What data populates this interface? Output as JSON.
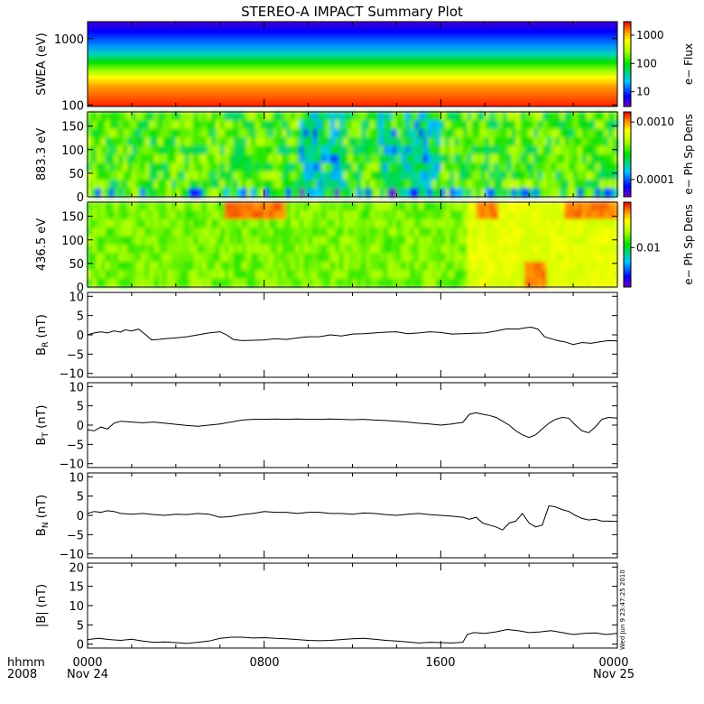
{
  "title": "STEREO-A IMPACT Summary Plot",
  "timestamp_note": "Wed Jun 9 23:47:25 2010",
  "colors": {
    "frame": "#000000",
    "trace": "#000000",
    "background": "#ffffff"
  },
  "time_axis": {
    "row1_labels": [
      "hhmm",
      "0000",
      "0800",
      "1600",
      "0000"
    ],
    "row2_labels": [
      "2008",
      "Nov 24",
      "Nov 25"
    ],
    "range_hours": [
      0,
      24
    ],
    "major_ticks_hours": [
      0,
      8,
      16,
      24
    ]
  },
  "chart_data": [
    {
      "type": "heatmap",
      "ylabel": "SWEA (eV)",
      "y_scale": "log",
      "ylim": [
        95,
        1800
      ],
      "yticks": [
        100,
        1000
      ],
      "ytick_labels": [
        "100",
        "1000"
      ],
      "colorbar": {
        "label": "e− Flux",
        "scale": "log",
        "range": [
          3,
          3000
        ],
        "ticks": [
          10,
          100,
          1000
        ],
        "tick_labels": [
          "10",
          "100",
          "1000"
        ]
      },
      "description": "Electron flux vs energy: red/orange at low energy (~100 eV), green mid, blue at top (>1000 eV); roughly constant through day."
    },
    {
      "type": "heatmap",
      "ylabel": "883.3 eV",
      "ylim": [
        0,
        180
      ],
      "yticks": [
        0,
        50,
        100,
        150
      ],
      "ytick_labels": [
        "0",
        "50",
        "100",
        "150"
      ],
      "colorbar": {
        "label": "e− Ph Sp Dens",
        "scale": "log",
        "range": [
          5e-05,
          0.0015
        ],
        "ticks": [
          0.0001,
          0.001
        ],
        "tick_labels": [
          "0.0001",
          "0.0010"
        ]
      },
      "description": "Pitch angle distribution at 883.3 eV, mostly green/yellow with blue patches near 09:30-11:30 and 13:00-16:00."
    },
    {
      "type": "heatmap",
      "ylabel": "436.5 eV",
      "ylim": [
        0,
        180
      ],
      "yticks": [
        0,
        50,
        100,
        150
      ],
      "ytick_labels": [
        "0",
        "50",
        "100",
        "150"
      ],
      "colorbar": {
        "label": "e− Ph Sp Dens",
        "scale": "log",
        "range": [
          0.003,
          0.04
        ],
        "ticks": [
          0.01
        ],
        "tick_labels": [
          "0.01"
        ]
      },
      "description": "Pitch angle distribution at 436.5 eV, green/yellow with orange-red strahl near 06:00-09:00 top, 17:30-18:30 top, 19:30-20:30 bottom, 21:30-24:00 top."
    },
    {
      "type": "line",
      "ylabel": "B_R (nT)",
      "ylim": [
        -11,
        11
      ],
      "yticks": [
        -10,
        -5,
        0,
        5,
        10
      ],
      "ytick_labels": [
        "−10",
        "−5",
        "0",
        "5",
        "10"
      ],
      "x": [
        0,
        0.3,
        0.6,
        0.9,
        1.2,
        1.5,
        1.7,
        2.0,
        2.3,
        2.6,
        2.9,
        3.2,
        3.5,
        4.0,
        4.5,
        5.0,
        5.5,
        6.0,
        6.3,
        6.6,
        7.0,
        7.5,
        8.0,
        8.5,
        9.0,
        9.5,
        10.0,
        10.5,
        11.0,
        11.5,
        12.0,
        12.5,
        13.0,
        13.5,
        14.0,
        14.5,
        15.0,
        15.5,
        16.0,
        16.5,
        17.0,
        17.5,
        18.0,
        18.5,
        19.0,
        19.5,
        19.8,
        20.1,
        20.4,
        20.7,
        21.0,
        21.3,
        21.6,
        22.0,
        22.4,
        22.8,
        23.2,
        23.6,
        24.0
      ],
      "values": [
        0.0,
        0.5,
        0.8,
        0.5,
        1.0,
        0.7,
        1.3,
        1.0,
        1.5,
        0.2,
        -1.3,
        -1.2,
        -1.0,
        -0.8,
        -0.5,
        0.0,
        0.5,
        0.8,
        0.0,
        -1.2,
        -1.5,
        -1.4,
        -1.3,
        -1.0,
        -1.2,
        -0.8,
        -0.5,
        -0.5,
        0.0,
        -0.3,
        0.2,
        0.3,
        0.5,
        0.7,
        0.8,
        0.3,
        0.5,
        0.8,
        0.6,
        0.2,
        0.3,
        0.4,
        0.5,
        1.0,
        1.6,
        1.5,
        1.8,
        2.0,
        1.5,
        -0.5,
        -1.0,
        -1.5,
        -1.8,
        -2.5,
        -2.0,
        -2.2,
        -1.8,
        -1.5,
        -1.6
      ]
    },
    {
      "type": "line",
      "ylabel": "B_T (nT)",
      "ylim": [
        -11,
        11
      ],
      "yticks": [
        -10,
        -5,
        0,
        5,
        10
      ],
      "ytick_labels": [
        "−10",
        "−5",
        "0",
        "5",
        "10"
      ],
      "x": [
        0,
        0.3,
        0.6,
        0.9,
        1.2,
        1.5,
        2.0,
        2.5,
        3.0,
        3.5,
        4.0,
        4.5,
        5.0,
        5.5,
        6.0,
        6.5,
        7.0,
        7.5,
        8.0,
        8.5,
        9.0,
        9.5,
        10.0,
        10.5,
        11.0,
        11.5,
        12.0,
        12.5,
        13.0,
        13.5,
        14.0,
        14.5,
        15.0,
        15.5,
        16.0,
        16.5,
        17.0,
        17.3,
        17.6,
        17.9,
        18.2,
        18.5,
        18.8,
        19.1,
        19.4,
        19.7,
        20.0,
        20.3,
        20.6,
        20.9,
        21.2,
        21.5,
        21.8,
        22.1,
        22.4,
        22.7,
        23.0,
        23.3,
        23.6,
        24.0
      ],
      "values": [
        -1.2,
        -1.5,
        -0.5,
        -1.0,
        0.5,
        1.0,
        0.8,
        0.6,
        0.8,
        0.5,
        0.2,
        -0.1,
        -0.3,
        0.0,
        0.3,
        0.8,
        1.3,
        1.5,
        1.5,
        1.6,
        1.5,
        1.6,
        1.5,
        1.5,
        1.6,
        1.5,
        1.4,
        1.5,
        1.3,
        1.2,
        1.0,
        0.8,
        0.5,
        0.3,
        0.0,
        0.3,
        0.7,
        2.8,
        3.2,
        2.8,
        2.5,
        2.0,
        1.0,
        0.0,
        -1.5,
        -2.5,
        -3.2,
        -2.5,
        -1.0,
        0.5,
        1.5,
        2.0,
        1.8,
        0.0,
        -1.5,
        -2.0,
        -0.5,
        1.5,
        2.0,
        1.8
      ]
    },
    {
      "type": "line",
      "ylabel": "B_N (nT)",
      "ylim": [
        -11,
        11
      ],
      "yticks": [
        -10,
        -5,
        0,
        5,
        10
      ],
      "ytick_labels": [
        "−10",
        "−5",
        "0",
        "5",
        "10"
      ],
      "x": [
        0,
        0.3,
        0.6,
        0.9,
        1.2,
        1.5,
        2.0,
        2.5,
        3.0,
        3.5,
        4.0,
        4.5,
        5.0,
        5.5,
        6.0,
        6.5,
        7.0,
        7.5,
        8.0,
        8.5,
        9.0,
        9.5,
        10.0,
        10.5,
        11.0,
        11.5,
        12.0,
        12.5,
        13.0,
        13.5,
        14.0,
        14.5,
        15.0,
        15.5,
        16.0,
        16.5,
        17.0,
        17.3,
        17.6,
        17.9,
        18.2,
        18.5,
        18.8,
        19.1,
        19.4,
        19.7,
        20.0,
        20.3,
        20.6,
        20.9,
        21.2,
        21.5,
        21.8,
        22.1,
        22.4,
        22.7,
        23.0,
        23.3,
        23.6,
        24.0
      ],
      "values": [
        0.5,
        1.0,
        0.8,
        1.2,
        1.0,
        0.5,
        0.3,
        0.5,
        0.2,
        0.0,
        0.3,
        0.2,
        0.5,
        0.3,
        -0.5,
        -0.3,
        0.2,
        0.5,
        1.0,
        0.8,
        0.8,
        0.5,
        0.8,
        0.8,
        0.5,
        0.5,
        0.3,
        0.6,
        0.5,
        0.2,
        0.0,
        0.3,
        0.5,
        0.2,
        0.0,
        -0.2,
        -0.5,
        -1.0,
        -0.5,
        -2.0,
        -2.5,
        -3.0,
        -3.8,
        -2.0,
        -1.5,
        0.5,
        -2.0,
        -3.0,
        -2.5,
        2.5,
        2.2,
        1.5,
        1.0,
        0.0,
        -0.8,
        -1.2,
        -1.0,
        -1.5,
        -1.5,
        -1.6
      ]
    },
    {
      "type": "line",
      "ylabel": "|B| (nT)",
      "ylim": [
        -1,
        21
      ],
      "yticks": [
        0,
        5,
        10,
        15,
        20
      ],
      "ytick_labels": [
        "0",
        "5",
        "10",
        "15",
        "20"
      ],
      "x": [
        0,
        0.5,
        1.0,
        1.5,
        2.0,
        2.5,
        3.0,
        3.5,
        4.0,
        4.5,
        5.0,
        5.5,
        6.0,
        6.5,
        7.0,
        7.5,
        8.0,
        8.5,
        9.0,
        9.5,
        10.0,
        10.5,
        11.0,
        11.5,
        12.0,
        12.5,
        13.0,
        13.5,
        14.0,
        14.5,
        15.0,
        15.5,
        16.0,
        16.5,
        17.0,
        17.2,
        17.5,
        18.0,
        18.5,
        19.0,
        19.5,
        20.0,
        20.5,
        21.0,
        21.5,
        22.0,
        22.5,
        23.0,
        23.5,
        24.0
      ],
      "values": [
        1.2,
        1.5,
        1.2,
        1.0,
        1.3,
        0.8,
        0.5,
        0.6,
        0.4,
        0.2,
        0.5,
        0.8,
        1.5,
        1.8,
        1.8,
        1.6,
        1.7,
        1.5,
        1.4,
        1.2,
        1.0,
        0.9,
        1.0,
        1.2,
        1.4,
        1.5,
        1.3,
        1.0,
        0.8,
        0.6,
        0.3,
        0.5,
        0.4,
        0.3,
        0.5,
        2.5,
        3.0,
        2.8,
        3.2,
        3.8,
        3.5,
        3.0,
        3.2,
        3.5,
        3.0,
        2.5,
        2.8,
        2.9,
        2.5,
        2.8
      ]
    }
  ]
}
